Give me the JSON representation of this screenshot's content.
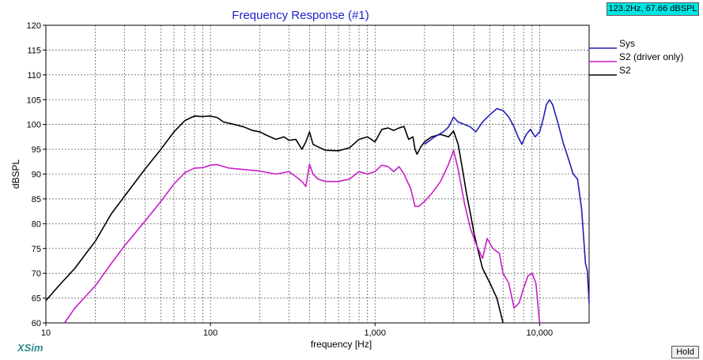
{
  "readout": "123.2Hz, 67.66 dBSPL",
  "hold_label": "Hold",
  "brand": "XSim",
  "chart_data": {
    "type": "line",
    "title": "Frequency Response (#1)",
    "xlabel": "frequency [Hz]",
    "ylabel": "dBSPL",
    "x_scale": "log",
    "xlim": [
      10,
      20000
    ],
    "ylim": [
      60,
      120
    ],
    "grid": true,
    "x_tick_labels": [
      {
        "value": 10,
        "label": "10"
      },
      {
        "value": 100,
        "label": "100"
      },
      {
        "value": 1000,
        "label": "1,000"
      },
      {
        "value": 10000,
        "label": "10,000"
      }
    ],
    "y_ticks": [
      60,
      65,
      70,
      75,
      80,
      85,
      90,
      95,
      100,
      105,
      110,
      115,
      120
    ],
    "legend_position": "right",
    "series": [
      {
        "name": "Sys",
        "color": "#1f1fb4",
        "points": [
          [
            2000,
            96
          ],
          [
            2300,
            97.5
          ],
          [
            2600,
            98.5
          ],
          [
            2800,
            99.5
          ],
          [
            3000,
            101.5
          ],
          [
            3200,
            100.5
          ],
          [
            3500,
            100
          ],
          [
            3800,
            99.5
          ],
          [
            4100,
            98.5
          ],
          [
            4500,
            100.5
          ],
          [
            5000,
            102
          ],
          [
            5500,
            103.2
          ],
          [
            6000,
            102.8
          ],
          [
            6500,
            101.5
          ],
          [
            7000,
            99.5
          ],
          [
            7400,
            97.5
          ],
          [
            7800,
            96
          ],
          [
            8300,
            98
          ],
          [
            8800,
            99
          ],
          [
            9400,
            97.5
          ],
          [
            10000,
            98.5
          ],
          [
            10500,
            101
          ],
          [
            11000,
            104
          ],
          [
            11500,
            105
          ],
          [
            12000,
            104
          ],
          [
            13000,
            100
          ],
          [
            14000,
            96
          ],
          [
            15000,
            93
          ],
          [
            16000,
            90
          ],
          [
            17000,
            89
          ],
          [
            18000,
            83
          ],
          [
            19000,
            72
          ],
          [
            19500,
            70.5
          ],
          [
            20000,
            64
          ]
        ]
      },
      {
        "name": "S2 (driver only)",
        "color": "#c81ec8",
        "points": [
          [
            13,
            60
          ],
          [
            15,
            63
          ],
          [
            20,
            67.5
          ],
          [
            25,
            72
          ],
          [
            30,
            75.5
          ],
          [
            40,
            80.5
          ],
          [
            50,
            84.5
          ],
          [
            60,
            88
          ],
          [
            70,
            90.3
          ],
          [
            80,
            91.2
          ],
          [
            90,
            91.3
          ],
          [
            100,
            91.8
          ],
          [
            110,
            91.9
          ],
          [
            130,
            91.2
          ],
          [
            150,
            91
          ],
          [
            200,
            90.6
          ],
          [
            250,
            90
          ],
          [
            300,
            90.5
          ],
          [
            330,
            89.5
          ],
          [
            360,
            88.5
          ],
          [
            380,
            87.5
          ],
          [
            400,
            92
          ],
          [
            420,
            90
          ],
          [
            450,
            89
          ],
          [
            500,
            88.5
          ],
          [
            600,
            88.5
          ],
          [
            700,
            89
          ],
          [
            800,
            90.5
          ],
          [
            900,
            90
          ],
          [
            1000,
            90.5
          ],
          [
            1100,
            91.8
          ],
          [
            1200,
            91.5
          ],
          [
            1300,
            90.5
          ],
          [
            1400,
            91.5
          ],
          [
            1500,
            90
          ],
          [
            1650,
            87
          ],
          [
            1750,
            83.5
          ],
          [
            1850,
            83.5
          ],
          [
            2000,
            84.5
          ],
          [
            2200,
            86
          ],
          [
            2500,
            88.5
          ],
          [
            2800,
            92
          ],
          [
            3000,
            94.8
          ],
          [
            3200,
            91
          ],
          [
            3500,
            84
          ],
          [
            3800,
            79
          ],
          [
            4100,
            76
          ],
          [
            4500,
            73
          ],
          [
            4800,
            77
          ],
          [
            5200,
            75
          ],
          [
            5700,
            74
          ],
          [
            6000,
            70
          ],
          [
            6500,
            68
          ],
          [
            7000,
            63
          ],
          [
            7500,
            64
          ],
          [
            8000,
            67
          ],
          [
            8500,
            69.5
          ],
          [
            9000,
            70
          ],
          [
            9500,
            68
          ],
          [
            10000,
            60
          ]
        ]
      },
      {
        "name": "S2",
        "color": "#000000",
        "points": [
          [
            10,
            64.5
          ],
          [
            12,
            67.5
          ],
          [
            15,
            71
          ],
          [
            20,
            76.5
          ],
          [
            25,
            82
          ],
          [
            30,
            85.5
          ],
          [
            40,
            91
          ],
          [
            50,
            95
          ],
          [
            60,
            98.5
          ],
          [
            70,
            100.8
          ],
          [
            80,
            101.7
          ],
          [
            90,
            101.6
          ],
          [
            100,
            101.7
          ],
          [
            110,
            101.4
          ],
          [
            120,
            100.5
          ],
          [
            140,
            100
          ],
          [
            160,
            99.5
          ],
          [
            180,
            98.8
          ],
          [
            200,
            98.5
          ],
          [
            220,
            97.8
          ],
          [
            250,
            97
          ],
          [
            280,
            97.5
          ],
          [
            300,
            96.8
          ],
          [
            330,
            97
          ],
          [
            360,
            95
          ],
          [
            380,
            96.5
          ],
          [
            400,
            98.5
          ],
          [
            420,
            96
          ],
          [
            450,
            95.5
          ],
          [
            500,
            94.8
          ],
          [
            600,
            94.7
          ],
          [
            700,
            95.3
          ],
          [
            800,
            97
          ],
          [
            900,
            97.5
          ],
          [
            1000,
            96.5
          ],
          [
            1100,
            99
          ],
          [
            1200,
            99.3
          ],
          [
            1300,
            98.8
          ],
          [
            1400,
            99.3
          ],
          [
            1500,
            99.6
          ],
          [
            1600,
            97
          ],
          [
            1700,
            97.5
          ],
          [
            1750,
            95
          ],
          [
            1800,
            94
          ],
          [
            1900,
            95.5
          ],
          [
            2000,
            96.5
          ],
          [
            2200,
            97.5
          ],
          [
            2500,
            98
          ],
          [
            2800,
            97.5
          ],
          [
            3000,
            98.7
          ],
          [
            3200,
            96
          ],
          [
            3400,
            91
          ],
          [
            3600,
            86
          ],
          [
            3800,
            82
          ],
          [
            4000,
            78
          ],
          [
            4200,
            75
          ],
          [
            4500,
            71
          ],
          [
            5000,
            68
          ],
          [
            5500,
            65
          ],
          [
            6000,
            60
          ]
        ]
      }
    ]
  }
}
